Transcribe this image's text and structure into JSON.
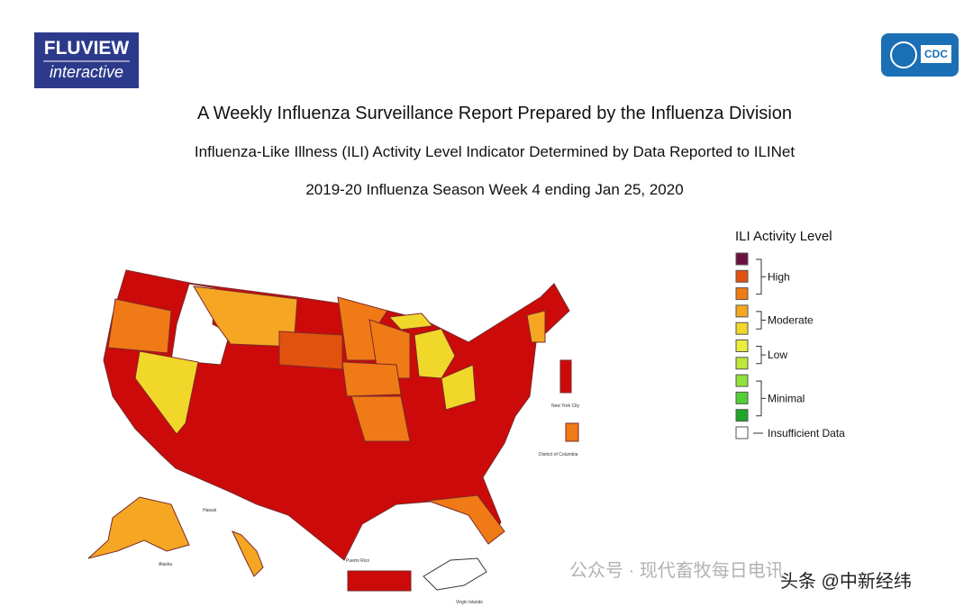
{
  "header": {
    "logo_title": "FLUVIEW",
    "logo_subtitle": "interactive",
    "agency": "CDC"
  },
  "titles": {
    "title": "A Weekly Influenza Surveillance Report Prepared by the Influenza Division",
    "subtitle": "Influenza-Like Illness (ILI) Activity Level Indicator Determined by Data Reported to ILINet",
    "season": "2019-20 Influenza Season Week 4 ending Jan 25, 2020"
  },
  "legend": {
    "title": "ILI Activity Level",
    "swatches": [
      "#6b1140",
      "#e2520f",
      "#f07a16",
      "#f5a623",
      "#f1d72a",
      "#e9ee3c",
      "#bfe63a",
      "#8fe23a",
      "#52cf35",
      "#1ea52a",
      "#ffffff"
    ],
    "groups": [
      {
        "label": "High",
        "from": 0,
        "to": 2
      },
      {
        "label": "Moderate",
        "from": 3,
        "to": 4
      },
      {
        "label": "Low",
        "from": 5,
        "to": 6
      },
      {
        "label": "Minimal",
        "from": 7,
        "to": 9
      },
      {
        "label": "Insufficient Data",
        "from": 10,
        "to": 10
      }
    ]
  },
  "map_labels": {
    "nyc": "New York City",
    "dc": "District of Columbia",
    "hawaii": "Hawaii",
    "alaska": "Alaska",
    "puerto_rico": "Puerto Rico",
    "virgin_islands": "Virgin Islands"
  },
  "watermarks": {
    "wechat": "公众号 · 现代畜牧每日电讯",
    "toutiao": "头条 @中新经纬"
  }
}
